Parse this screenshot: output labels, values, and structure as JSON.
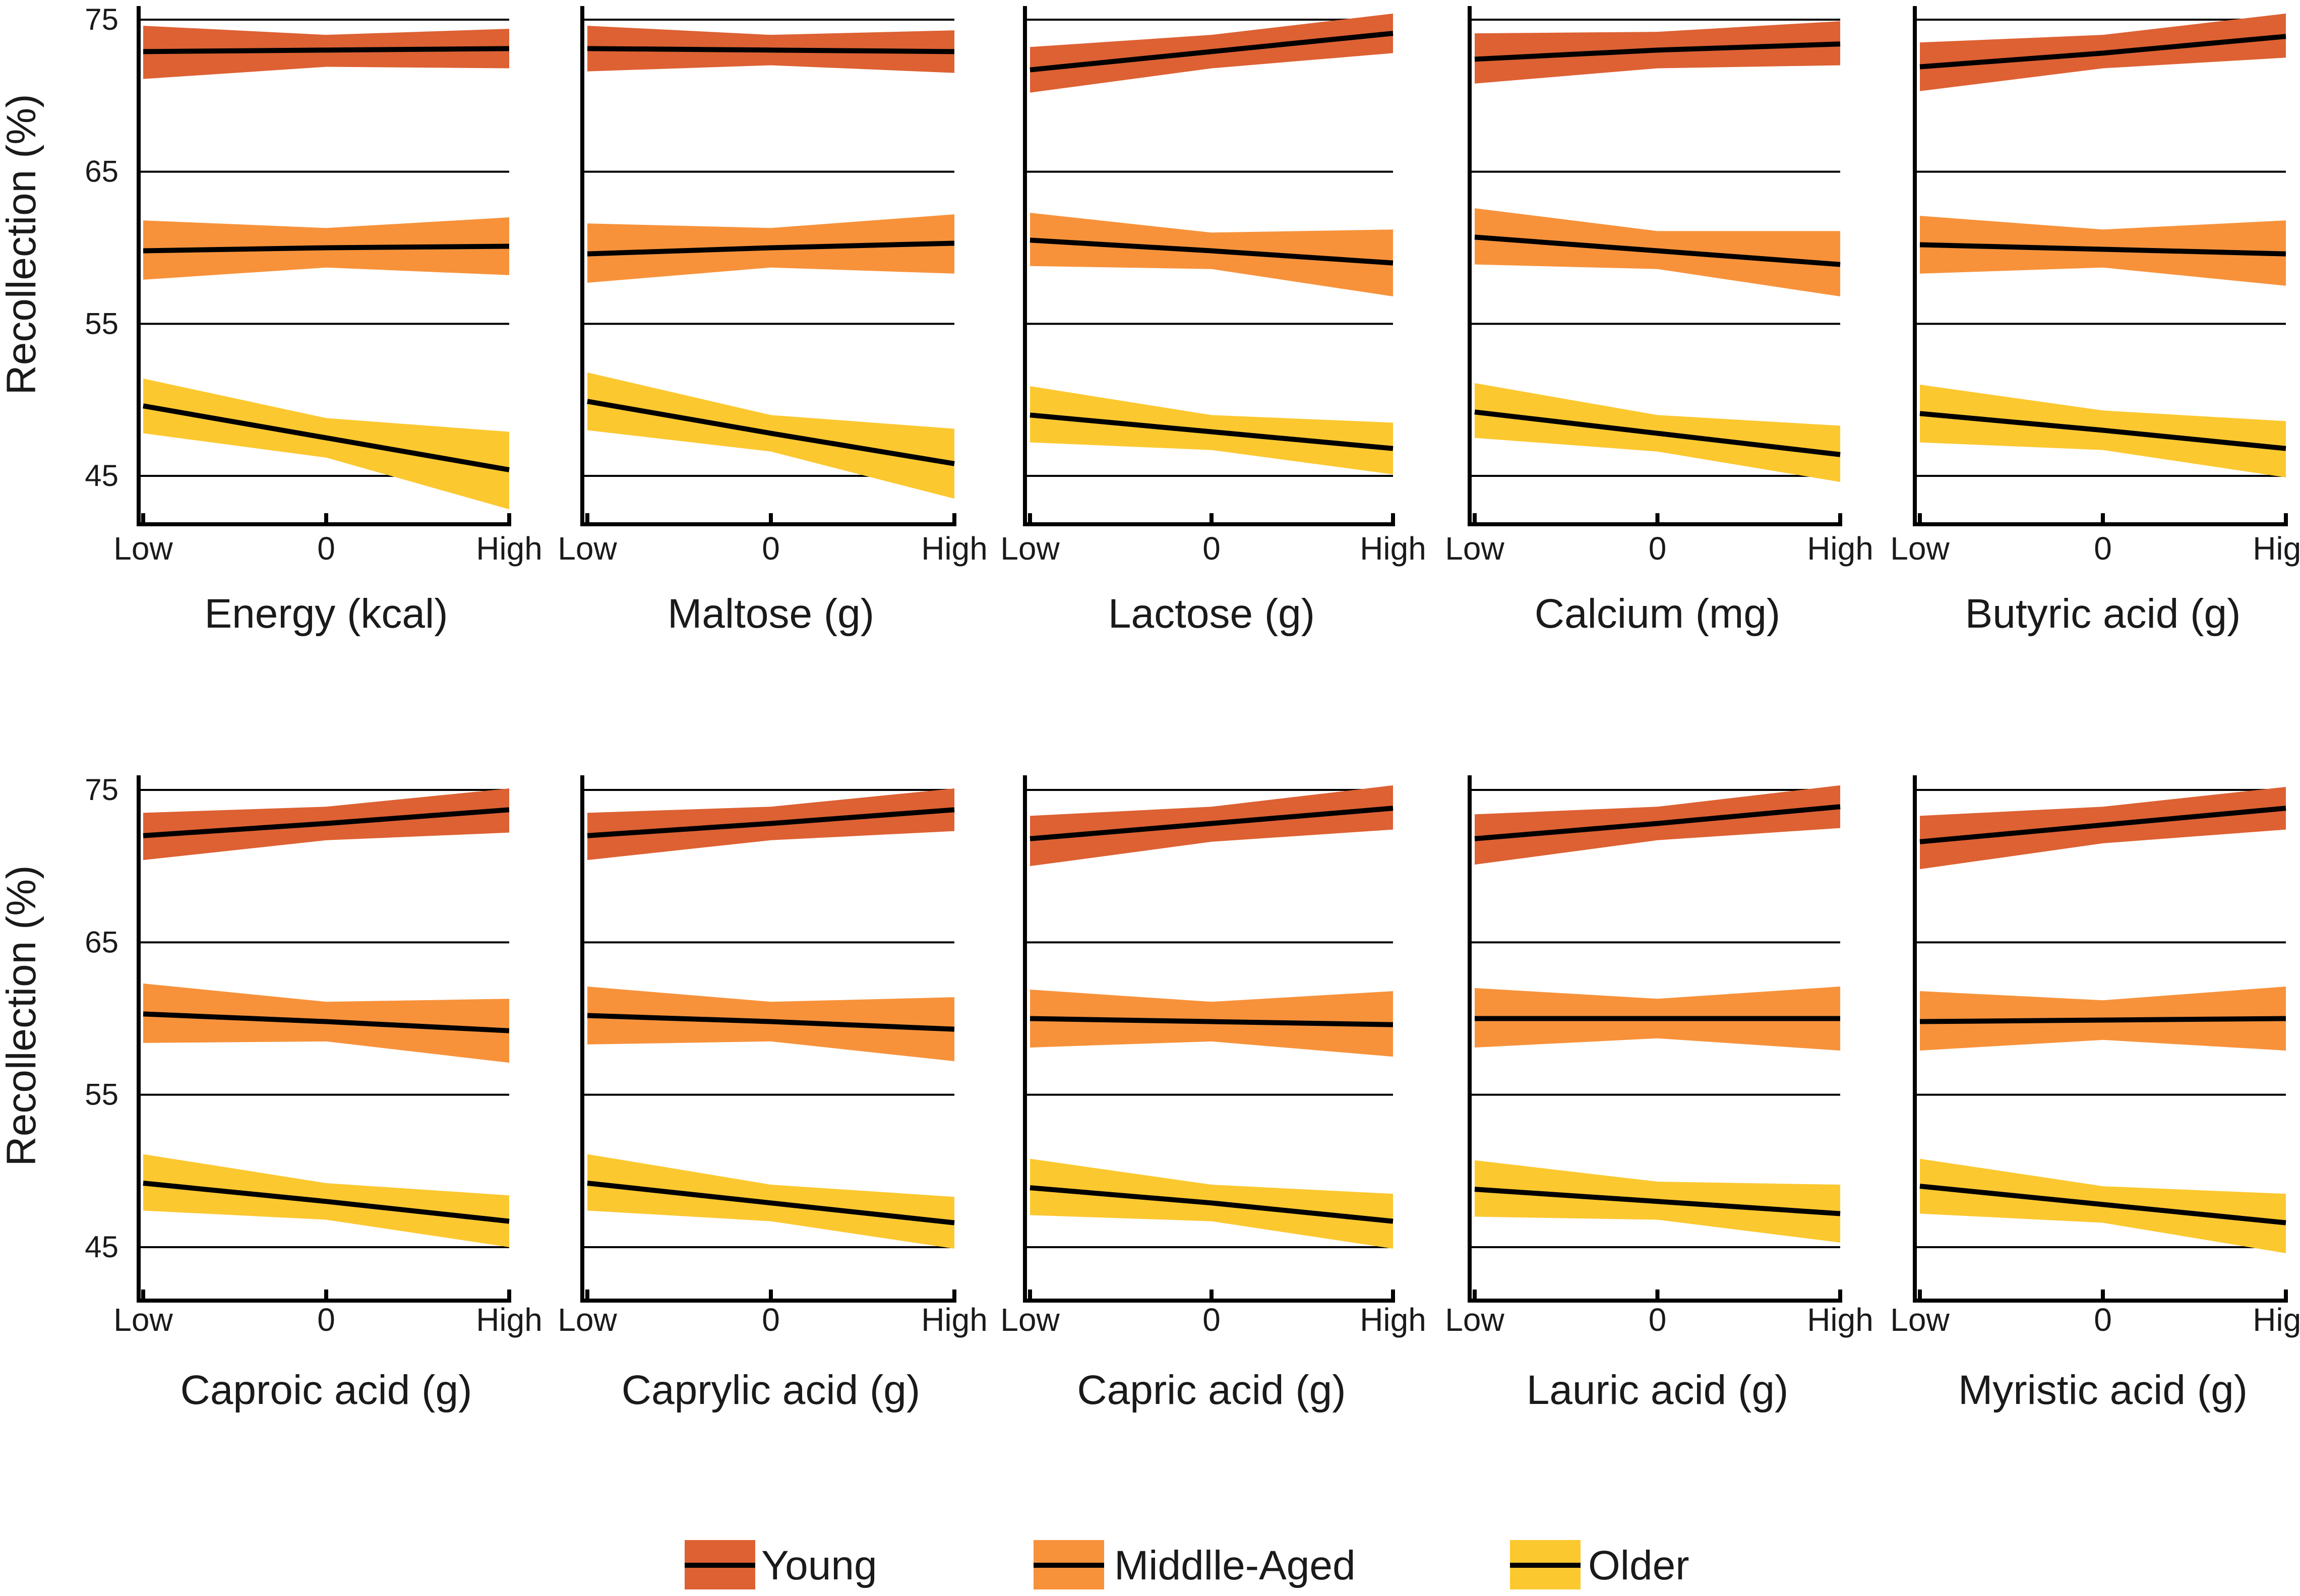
{
  "chart_data": {
    "type": "line",
    "ylabel": "Recollection (%)",
    "ylim": [
      42,
      75
    ],
    "yticks": [
      45,
      55,
      65,
      75
    ],
    "xticks": [
      "Low",
      "0",
      "High"
    ],
    "x": [
      -1,
      0,
      1
    ],
    "colors": {
      "Young": "#dd6133",
      "Middle-Aged": "#f7923b",
      "Older": "#fcc830"
    },
    "legend": [
      {
        "key": "Young",
        "label": "Young",
        "color": "#dd6133"
      },
      {
        "key": "Middle-Aged",
        "label": "Middlle-Aged",
        "color": "#f7923b"
      },
      {
        "key": "Older",
        "label": "Older",
        "color": "#fcc830"
      }
    ],
    "panels": [
      {
        "xlabel": "Energy (kcal)",
        "series": [
          {
            "name": "Young",
            "line": [
              72.9,
              73.0,
              73.1
            ],
            "lower": [
              71.1,
              71.9,
              71.8
            ],
            "upper": [
              74.6,
              74.0,
              74.4
            ]
          },
          {
            "name": "Middle-Aged",
            "line": [
              59.8,
              60.0,
              60.1
            ],
            "lower": [
              57.9,
              58.7,
              58.2
            ],
            "upper": [
              61.8,
              61.3,
              62.0
            ]
          },
          {
            "name": "Older",
            "line": [
              49.6,
              47.5,
              45.4
            ],
            "lower": [
              47.8,
              46.2,
              42.8
            ],
            "upper": [
              51.4,
              48.8,
              47.9
            ]
          }
        ]
      },
      {
        "xlabel": "Maltose (g)",
        "series": [
          {
            "name": "Young",
            "line": [
              73.1,
              73.0,
              72.9
            ],
            "lower": [
              71.6,
              72.0,
              71.5
            ],
            "upper": [
              74.6,
              74.0,
              74.3
            ]
          },
          {
            "name": "Middle-Aged",
            "line": [
              59.6,
              60.0,
              60.3
            ],
            "lower": [
              57.7,
              58.7,
              58.3
            ],
            "upper": [
              61.6,
              61.3,
              62.2
            ]
          },
          {
            "name": "Older",
            "line": [
              49.9,
              47.8,
              45.8
            ],
            "lower": [
              48.0,
              46.6,
              43.5
            ],
            "upper": [
              51.8,
              49.0,
              48.1
            ]
          }
        ]
      },
      {
        "xlabel": "Lactose (g)",
        "series": [
          {
            "name": "Young",
            "line": [
              71.7,
              72.9,
              74.1
            ],
            "lower": [
              70.2,
              71.8,
              72.8
            ],
            "upper": [
              73.2,
              74.0,
              75.4
            ]
          },
          {
            "name": "Middle-Aged",
            "line": [
              60.5,
              59.8,
              59.0
            ],
            "lower": [
              58.8,
              58.6,
              56.8
            ],
            "upper": [
              62.3,
              61.0,
              61.2
            ]
          },
          {
            "name": "Older",
            "line": [
              49.0,
              47.9,
              46.8
            ],
            "lower": [
              47.2,
              46.7,
              45.1
            ],
            "upper": [
              50.9,
              49.0,
              48.5
            ]
          }
        ]
      },
      {
        "xlabel": "Calcium (mg)",
        "series": [
          {
            "name": "Young",
            "line": [
              72.4,
              73.0,
              73.4
            ],
            "lower": [
              70.8,
              71.8,
              72.0
            ],
            "upper": [
              74.1,
              74.2,
              74.9
            ]
          },
          {
            "name": "Middle-Aged",
            "line": [
              60.7,
              59.8,
              58.9
            ],
            "lower": [
              58.9,
              58.6,
              56.8
            ],
            "upper": [
              62.6,
              61.1,
              61.1
            ]
          },
          {
            "name": "Older",
            "line": [
              49.2,
              47.8,
              46.4
            ],
            "lower": [
              47.5,
              46.6,
              44.6
            ],
            "upper": [
              51.1,
              49.0,
              48.3
            ]
          }
        ]
      },
      {
        "xlabel": "Butyric acid (g)",
        "series": [
          {
            "name": "Young",
            "line": [
              71.9,
              72.8,
              73.9
            ],
            "lower": [
              70.3,
              71.8,
              72.5
            ],
            "upper": [
              73.5,
              74.0,
              75.4
            ]
          },
          {
            "name": "Middle-Aged",
            "line": [
              60.2,
              59.9,
              59.6
            ],
            "lower": [
              58.3,
              58.7,
              57.5
            ],
            "upper": [
              62.1,
              61.2,
              61.8
            ]
          },
          {
            "name": "Older",
            "line": [
              49.1,
              48.0,
              46.8
            ],
            "lower": [
              47.2,
              46.7,
              44.9
            ],
            "upper": [
              51.0,
              49.3,
              48.6
            ]
          }
        ]
      },
      {
        "xlabel": "Caproic acid (g)",
        "series": [
          {
            "name": "Young",
            "line": [
              72.0,
              72.8,
              73.7
            ],
            "lower": [
              70.4,
              71.7,
              72.2
            ],
            "upper": [
              73.5,
              73.9,
              75.1
            ]
          },
          {
            "name": "Middle-Aged",
            "line": [
              60.3,
              59.8,
              59.2
            ],
            "lower": [
              58.4,
              58.5,
              57.1
            ],
            "upper": [
              62.3,
              61.1,
              61.3
            ]
          },
          {
            "name": "Older",
            "line": [
              49.2,
              48.0,
              46.7
            ],
            "lower": [
              47.4,
              46.8,
              45.0
            ],
            "upper": [
              51.1,
              49.2,
              48.4
            ]
          }
        ]
      },
      {
        "xlabel": "Caprylic acid (g)",
        "series": [
          {
            "name": "Young",
            "line": [
              72.0,
              72.8,
              73.7
            ],
            "lower": [
              70.4,
              71.7,
              72.3
            ],
            "upper": [
              73.5,
              73.9,
              75.1
            ]
          },
          {
            "name": "Middle-Aged",
            "line": [
              60.2,
              59.8,
              59.3
            ],
            "lower": [
              58.3,
              58.5,
              57.2
            ],
            "upper": [
              62.1,
              61.1,
              61.4
            ]
          },
          {
            "name": "Older",
            "line": [
              49.2,
              47.9,
              46.6
            ],
            "lower": [
              47.4,
              46.7,
              44.9
            ],
            "upper": [
              51.1,
              49.1,
              48.3
            ]
          }
        ]
      },
      {
        "xlabel": "Capric acid (g)",
        "series": [
          {
            "name": "Young",
            "line": [
              71.8,
              72.8,
              73.8
            ],
            "lower": [
              70.0,
              71.6,
              72.4
            ],
            "upper": [
              73.3,
              73.9,
              75.3
            ]
          },
          {
            "name": "Middle-Aged",
            "line": [
              60.0,
              59.8,
              59.6
            ],
            "lower": [
              58.1,
              58.5,
              57.5
            ],
            "upper": [
              61.9,
              61.1,
              61.8
            ]
          },
          {
            "name": "Older",
            "line": [
              48.9,
              47.9,
              46.7
            ],
            "lower": [
              47.1,
              46.7,
              44.9
            ],
            "upper": [
              50.8,
              49.1,
              48.5
            ]
          }
        ]
      },
      {
        "xlabel": "Lauric acid (g)",
        "series": [
          {
            "name": "Young",
            "line": [
              71.8,
              72.8,
              73.9
            ],
            "lower": [
              70.1,
              71.7,
              72.5
            ],
            "upper": [
              73.4,
              73.9,
              75.3
            ]
          },
          {
            "name": "Middle-Aged",
            "line": [
              60.0,
              60.0,
              60.0
            ],
            "lower": [
              58.1,
              58.7,
              57.9
            ],
            "upper": [
              62.0,
              61.3,
              62.1
            ]
          },
          {
            "name": "Older",
            "line": [
              48.8,
              48.0,
              47.2
            ],
            "lower": [
              47.0,
              46.8,
              45.3
            ],
            "upper": [
              50.7,
              49.3,
              49.1
            ]
          }
        ]
      },
      {
        "xlabel": "Myristic acid (g)",
        "series": [
          {
            "name": "Young",
            "line": [
              71.6,
              72.7,
              73.8
            ],
            "lower": [
              69.8,
              71.5,
              72.4
            ],
            "upper": [
              73.3,
              73.9,
              75.2
            ]
          },
          {
            "name": "Middle-Aged",
            "line": [
              59.8,
              59.9,
              60.0
            ],
            "lower": [
              57.9,
              58.6,
              57.9
            ],
            "upper": [
              61.8,
              61.2,
              62.1
            ]
          },
          {
            "name": "Older",
            "line": [
              49.0,
              47.8,
              46.6
            ],
            "lower": [
              47.2,
              46.6,
              44.6
            ],
            "upper": [
              50.8,
              49.0,
              48.5
            ]
          }
        ]
      }
    ]
  }
}
